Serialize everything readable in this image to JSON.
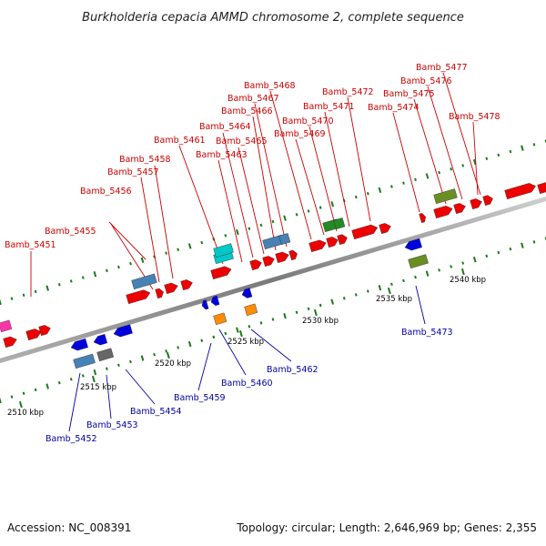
{
  "title": "Burkholderia cepacia AMMD chromosome 2, complete sequence",
  "footer": {
    "accession": "Accession: NC_008391",
    "topology": "Topology: circular; Length: 2,646,969 bp; Genes: 2,355"
  },
  "colors": {
    "top_label": "#cc0000",
    "bottom_label": "#0000aa",
    "backbone": "#8c8c8c",
    "tick": "#1a7a1a"
  },
  "ticks": [
    {
      "label": "2510 kbp"
    },
    {
      "label": "2515 kbp"
    },
    {
      "label": "2520 kbp"
    },
    {
      "label": "2525 kbp"
    },
    {
      "label": "2530 kbp"
    },
    {
      "label": "2535 kbp"
    },
    {
      "label": "2540 kbp"
    }
  ],
  "gene_labels_top": [
    "Bamb_5451",
    "Bamb_5455",
    "Bamb_5456",
    "Bamb_5457",
    "Bamb_5458",
    "Bamb_5461",
    "Bamb_5463",
    "Bamb_5464",
    "Bamb_5465",
    "Bamb_5466",
    "Bamb_5467",
    "Bamb_5468",
    "Bamb_5469",
    "Bamb_5470",
    "Bamb_5471",
    "Bamb_5472",
    "Bamb_5474",
    "Bamb_5475",
    "Bamb_5476",
    "Bamb_5477",
    "Bamb_5478"
  ],
  "gene_labels_bottom": [
    "Bamb_5452",
    "Bamb_5453",
    "Bamb_5454",
    "Bamb_5459",
    "Bamb_5460",
    "Bamb_5462",
    "Bamb_5473"
  ]
}
